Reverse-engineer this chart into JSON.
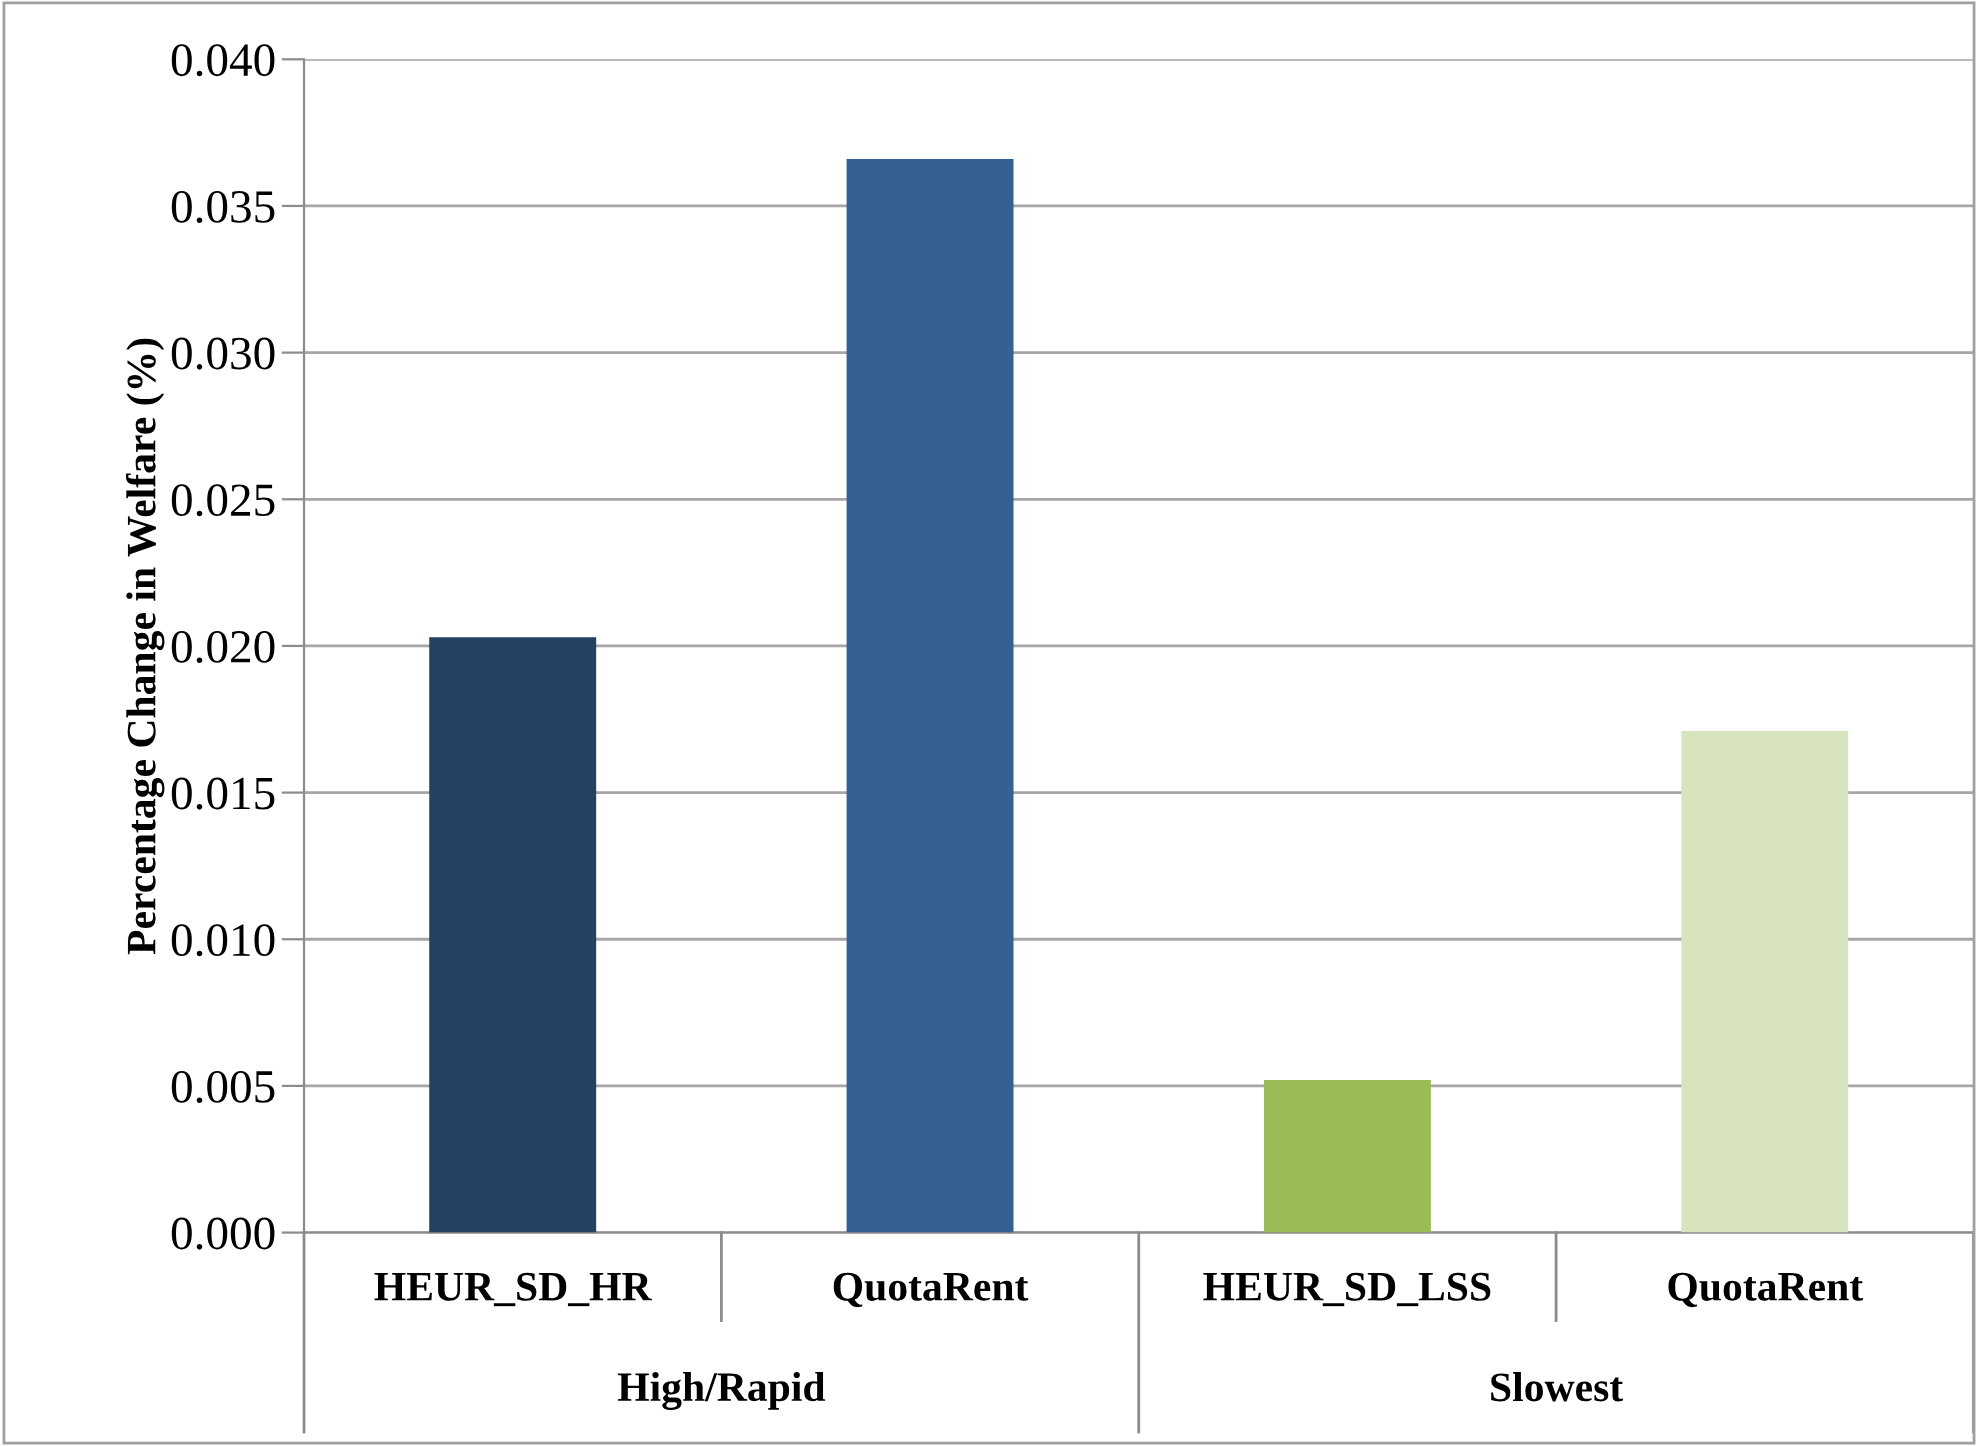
{
  "chart_data": {
    "type": "bar",
    "ylabel": "Percentage Change in Welfare (%)",
    "categories": [
      "HEUR_SD_HR",
      "QuotaRent",
      "HEUR_SD_LSS",
      "QuotaRent"
    ],
    "values": [
      0.0203,
      0.0366,
      0.0052,
      0.0171
    ],
    "colors": [
      "#254061",
      "#376092",
      "#9BBB59",
      "#D7E4BD"
    ],
    "ylim": [
      0,
      0.04
    ],
    "yticks": [
      {
        "value": 0,
        "label": "0.000"
      },
      {
        "value": 0.005,
        "label": "0.005"
      },
      {
        "value": 0.01,
        "label": "0.010"
      },
      {
        "value": 0.015,
        "label": "0.015"
      },
      {
        "value": 0.02,
        "label": "0.020"
      },
      {
        "value": 0.025,
        "label": "0.025"
      },
      {
        "value": 0.03,
        "label": "0.030"
      },
      {
        "value": 0.035,
        "label": "0.035"
      },
      {
        "value": 0.04,
        "label": "0.040"
      }
    ],
    "grid": "y",
    "legend": false,
    "annotations": [
      "High/Rapid",
      "Slowest"
    ]
  }
}
